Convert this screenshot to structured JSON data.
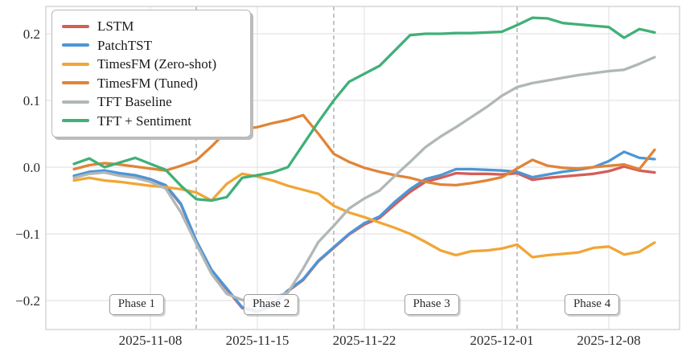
{
  "chart_data": {
    "type": "line",
    "x_dates": [
      "2025-11-03",
      "2025-11-04",
      "2025-11-05",
      "2025-11-06",
      "2025-11-07",
      "2025-11-08",
      "2025-11-09",
      "2025-11-10",
      "2025-11-11",
      "2025-11-12",
      "2025-11-13",
      "2025-11-14",
      "2025-11-15",
      "2025-11-16",
      "2025-11-17",
      "2025-11-18",
      "2025-11-19",
      "2025-11-20",
      "2025-11-21",
      "2025-11-22",
      "2025-11-23",
      "2025-11-24",
      "2025-11-25",
      "2025-11-26",
      "2025-11-27",
      "2025-11-28",
      "2025-11-29",
      "2025-11-30",
      "2025-12-01",
      "2025-12-02",
      "2025-12-03",
      "2025-12-04",
      "2025-12-05",
      "2025-12-06",
      "2025-12-07",
      "2025-12-08",
      "2025-12-09",
      "2025-12-10",
      "2025-12-11"
    ],
    "series": [
      {
        "name": "LSTM",
        "color": "#d45d56",
        "values": [
          -0.013,
          -0.008,
          -0.006,
          -0.01,
          -0.013,
          -0.019,
          -0.028,
          -0.056,
          -0.111,
          -0.155,
          -0.183,
          -0.211,
          -0.217,
          -0.207,
          -0.186,
          -0.169,
          -0.141,
          -0.121,
          -0.101,
          -0.086,
          -0.076,
          -0.056,
          -0.037,
          -0.022,
          -0.016,
          -0.009,
          -0.01,
          -0.01,
          -0.011,
          -0.009,
          -0.019,
          -0.016,
          -0.014,
          -0.012,
          -0.01,
          -0.006,
          0.001,
          -0.005,
          -0.008
        ]
      },
      {
        "name": "PatchTST",
        "color": "#4e95d5",
        "values": [
          -0.013,
          -0.007,
          -0.005,
          -0.009,
          -0.012,
          -0.018,
          -0.027,
          -0.055,
          -0.11,
          -0.154,
          -0.182,
          -0.21,
          -0.216,
          -0.206,
          -0.185,
          -0.168,
          -0.14,
          -0.12,
          -0.1,
          -0.084,
          -0.074,
          -0.052,
          -0.033,
          -0.018,
          -0.012,
          -0.003,
          -0.003,
          -0.004,
          -0.005,
          -0.007,
          -0.015,
          -0.011,
          -0.007,
          -0.004,
          0.0,
          0.009,
          0.023,
          0.014,
          0.012
        ]
      },
      {
        "name": "TimesFM (Zero-shot)",
        "color": "#f0a637",
        "values": [
          -0.02,
          -0.016,
          -0.02,
          -0.022,
          -0.025,
          -0.028,
          -0.03,
          -0.033,
          -0.038,
          -0.05,
          -0.025,
          -0.01,
          -0.014,
          -0.02,
          -0.028,
          -0.034,
          -0.04,
          -0.058,
          -0.068,
          -0.075,
          -0.083,
          -0.091,
          -0.1,
          -0.112,
          -0.125,
          -0.132,
          -0.126,
          -0.125,
          -0.122,
          -0.116,
          -0.135,
          -0.132,
          -0.13,
          -0.128,
          -0.121,
          -0.119,
          -0.131,
          -0.127,
          -0.113
        ]
      },
      {
        "name": "TimesFM (Tuned)",
        "color": "#e08437",
        "values": [
          -0.003,
          0.003,
          0.006,
          0.004,
          0.001,
          -0.002,
          -0.005,
          0.002,
          0.01,
          0.031,
          0.054,
          0.057,
          0.06,
          0.066,
          0.071,
          0.078,
          0.05,
          0.02,
          0.008,
          -0.001,
          -0.007,
          -0.012,
          -0.016,
          -0.022,
          -0.026,
          -0.027,
          -0.024,
          -0.02,
          -0.015,
          -0.002,
          0.011,
          0.002,
          -0.001,
          -0.002,
          0.0,
          0.002,
          0.004,
          -0.003,
          0.026
        ]
      },
      {
        "name": "TFT Baseline",
        "color": "#b0b8b6",
        "values": [
          -0.016,
          -0.01,
          -0.008,
          -0.013,
          -0.016,
          -0.022,
          -0.032,
          -0.068,
          -0.115,
          -0.16,
          -0.19,
          -0.199,
          -0.201,
          -0.196,
          -0.188,
          -0.152,
          -0.112,
          -0.088,
          -0.062,
          -0.047,
          -0.035,
          -0.013,
          0.008,
          0.03,
          0.046,
          0.06,
          0.075,
          0.09,
          0.107,
          0.12,
          0.126,
          0.13,
          0.134,
          0.138,
          0.141,
          0.144,
          0.146,
          0.155,
          0.165
        ]
      },
      {
        "name": "TFT + Sentiment",
        "color": "#41b077",
        "values": [
          0.005,
          0.013,
          0.0,
          0.007,
          0.014,
          0.005,
          -0.004,
          -0.028,
          -0.048,
          -0.05,
          -0.045,
          -0.016,
          -0.012,
          -0.008,
          0.0,
          0.034,
          0.068,
          0.1,
          0.128,
          0.14,
          0.152,
          0.175,
          0.198,
          0.2,
          0.2,
          0.201,
          0.201,
          0.202,
          0.203,
          0.213,
          0.224,
          0.223,
          0.216,
          0.214,
          0.212,
          0.21,
          0.194,
          0.207,
          0.202
        ]
      }
    ],
    "ylim": [
      -0.2434,
      0.241
    ],
    "yticks": [
      {
        "value": 0.2,
        "label": "0.2"
      },
      {
        "value": 0.1,
        "label": "0.1"
      },
      {
        "value": 0.0,
        "label": "0.0"
      },
      {
        "value": -0.1,
        "label": "−0.1"
      },
      {
        "value": -0.2,
        "label": "−0.2"
      }
    ],
    "xticks": [
      {
        "index": 5,
        "label": "2025-11-08"
      },
      {
        "index": 12,
        "label": "2025-11-15"
      },
      {
        "index": 19,
        "label": "2025-11-22"
      },
      {
        "index": 28,
        "label": "2025-12-01"
      },
      {
        "index": 35,
        "label": "2025-12-08"
      }
    ],
    "phase_dividers": [
      8,
      17,
      29
    ],
    "phase_labels": [
      {
        "text": "Phase 1",
        "index": 4.1
      },
      {
        "text": "Phase 2",
        "index": 12.9
      },
      {
        "text": "Phase 3",
        "index": 23.4
      },
      {
        "text": "Phase 4",
        "index": 33.9
      }
    ],
    "legend_position": "upper left",
    "grid": true,
    "colors": {
      "gridline": "#e4e4e6",
      "divider": "#ababab",
      "spine": "#cfcfd4",
      "tick_text": "#2b2b2b"
    }
  }
}
